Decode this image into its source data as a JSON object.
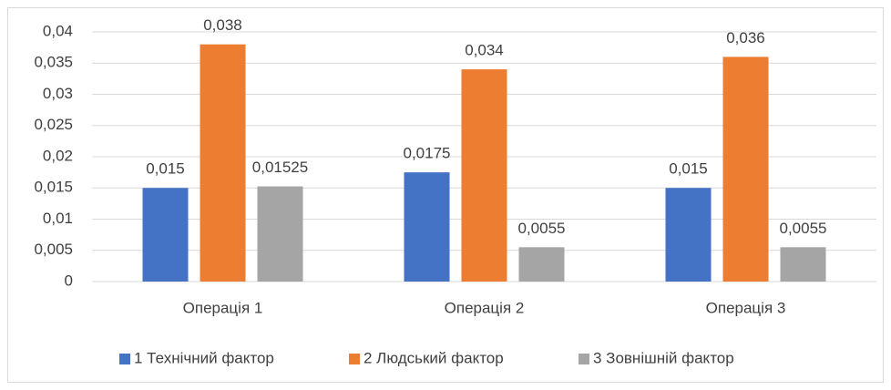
{
  "chart_data": {
    "type": "bar",
    "categories": [
      "Операція 1",
      "Операція 2",
      "Операція 3"
    ],
    "series": [
      {
        "name": "1 Технічний фактор",
        "color": "#4472c4",
        "values": [
          0.015,
          0.0175,
          0.015
        ],
        "value_labels": [
          "0,015",
          "0,0175",
          "0,015"
        ]
      },
      {
        "name": "2 Людський фактор",
        "color": "#ed7d31",
        "values": [
          0.038,
          0.034,
          0.036
        ],
        "value_labels": [
          "0,038",
          "0,034",
          "0,036"
        ]
      },
      {
        "name": "3 Зовнішній фактор",
        "color": "#a5a5a5",
        "values": [
          0.01525,
          0.0055,
          0.0055
        ],
        "value_labels": [
          "0,01525",
          "0,0055",
          "0,0055"
        ]
      }
    ],
    "ylim": [
      0,
      0.04
    ],
    "yticks": [
      0,
      {
        "value": 0.005,
        "label": "0,005"
      },
      {
        "value": 0.01,
        "label": "0,01"
      },
      {
        "value": 0.015,
        "label": "0,015"
      },
      {
        "value": 0.02,
        "label": "0,02"
      },
      {
        "value": 0.025,
        "label": "0,025"
      },
      {
        "value": 0.03,
        "label": "0,03"
      },
      {
        "value": 0.035,
        "label": "0,035"
      },
      {
        "value": 0.04,
        "label": "0,04"
      }
    ],
    "grid": true,
    "legend": "bottom"
  }
}
